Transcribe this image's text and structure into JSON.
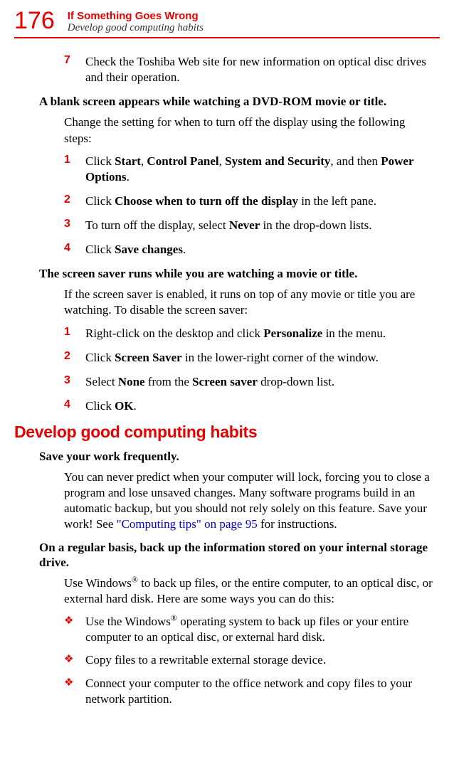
{
  "page_number": "176",
  "header_title": "If Something Goes Wrong",
  "header_subtitle": "Develop good computing habits",
  "sec1": {
    "step7num": "7",
    "step7": "Check the Toshiba Web site for new information on optical disc drives and their operation."
  },
  "sec2": {
    "heading": "A blank screen appears while watching a DVD-ROM movie or title.",
    "intro": "Change the setting for when to turn off the display using the following steps:",
    "s1n": "1",
    "s1a": "Click ",
    "s1b": "Start",
    "s1c": ", ",
    "s1d": "Control Panel",
    "s1e": ", ",
    "s1f": "System and Security",
    "s1g": ", and then ",
    "s1h": "Power Options",
    "s1i": ".",
    "s2n": "2",
    "s2a": "Click ",
    "s2b": "Choose when to turn off the display",
    "s2c": " in the left pane.",
    "s3n": "3",
    "s3a": "To turn off the display, select ",
    "s3b": "Never",
    "s3c": " in the drop-down lists.",
    "s4n": "4",
    "s4a": "Click ",
    "s4b": "Save changes",
    "s4c": "."
  },
  "sec3": {
    "heading": "The screen saver runs while you are watching a movie or title.",
    "intro": "If the screen saver is enabled, it runs on top of any movie or title you are watching. To disable the screen saver:",
    "s1n": "1",
    "s1a": "Right-click on the desktop and click ",
    "s1b": "Personalize",
    "s1c": " in the menu.",
    "s2n": "2",
    "s2a": "Click ",
    "s2b": "Screen Saver",
    "s2c": " in the lower-right corner of the window.",
    "s3n": "3",
    "s3a": "Select ",
    "s3b": "None",
    "s3c": " from the ",
    "s3d": "Screen saver",
    "s3e": " drop-down list.",
    "s4n": "4",
    "s4a": "Click ",
    "s4b": "OK",
    "s4c": "."
  },
  "sec4": {
    "heading": "Develop good computing habits",
    "sub1": "Save your work frequently.",
    "p1a": "You can never predict when your computer will lock, forcing you to close a program and lose unsaved changes. Many software programs build in an automatic backup, but you should not rely solely on this feature. Save your work! See ",
    "p1link": "\"Computing tips\" on page 95",
    "p1b": " for instructions.",
    "sub2": "On a regular basis, back up the information stored on your internal storage drive.",
    "p2a": "Use Windows",
    "p2b": " to back up files, or the entire computer, to an optical disc, or external hard disk. Here are some ways you can do this:",
    "b1a": "Use the Windows",
    "b1b": " operating system to back up files or your entire computer to an optical disc, or external hard disk.",
    "b2": "Copy files to a rewritable external storage device.",
    "b3": "Connect your computer to the office network and copy files to your network partition.",
    "bullet": "❖",
    "reg": "®"
  }
}
